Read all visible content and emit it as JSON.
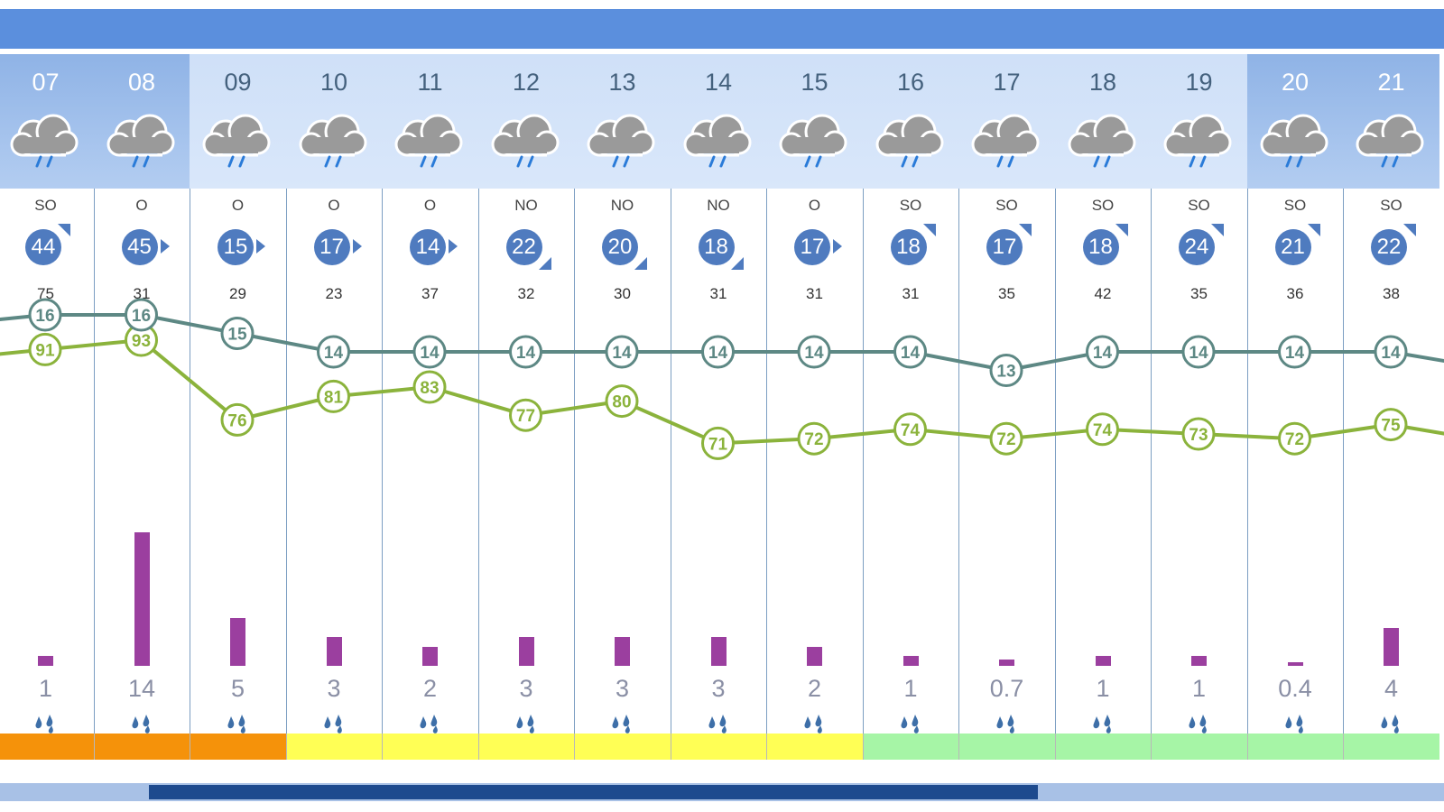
{
  "colors": {
    "max_temp_line": "#5d8884",
    "humidity_line": "#8bb33c",
    "precip_bar": "#9b3f9f",
    "wind_badge": "#4f7bbf"
  },
  "days": [
    {
      "day": "07",
      "icon": "rain-cloud-icon",
      "dir": "SO",
      "wind": "44",
      "arrow": "ne",
      "gust": "75",
      "temp": "16",
      "hum": "91",
      "rain": "1",
      "bar": 1,
      "risk": "#f5920a",
      "weekend": true
    },
    {
      "day": "08",
      "icon": "rain-cloud-icon",
      "dir": "O",
      "wind": "45",
      "arrow": "e",
      "gust": "31",
      "temp": "16",
      "hum": "93",
      "rain": "14",
      "bar": 14,
      "risk": "#f5920a",
      "weekend": true
    },
    {
      "day": "09",
      "icon": "rain-cloud-icon",
      "dir": "O",
      "wind": "15",
      "arrow": "e",
      "gust": "29",
      "temp": "15",
      "hum": "76",
      "rain": "5",
      "bar": 5,
      "risk": "#f5920a",
      "weekend": false
    },
    {
      "day": "10",
      "icon": "rain-cloud-icon",
      "dir": "O",
      "wind": "17",
      "arrow": "e",
      "gust": "23",
      "temp": "14",
      "hum": "81",
      "rain": "3",
      "bar": 3,
      "risk": "#ffff55",
      "weekend": false
    },
    {
      "day": "11",
      "icon": "rain-cloud-icon",
      "dir": "O",
      "wind": "14",
      "arrow": "e",
      "gust": "37",
      "temp": "14",
      "hum": "83",
      "rain": "2",
      "bar": 2,
      "risk": "#ffff55",
      "weekend": false
    },
    {
      "day": "12",
      "icon": "rain-cloud-icon",
      "dir": "NO",
      "wind": "22",
      "arrow": "se",
      "gust": "32",
      "temp": "14",
      "hum": "77",
      "rain": "3",
      "bar": 3,
      "risk": "#ffff55",
      "weekend": false
    },
    {
      "day": "13",
      "icon": "rain-cloud-icon",
      "dir": "NO",
      "wind": "20",
      "arrow": "se",
      "gust": "30",
      "temp": "14",
      "hum": "80",
      "rain": "3",
      "bar": 3,
      "risk": "#ffff55",
      "weekend": false
    },
    {
      "day": "14",
      "icon": "rain-cloud-icon",
      "dir": "NO",
      "wind": "18",
      "arrow": "se",
      "gust": "31",
      "temp": "14",
      "hum": "71",
      "rain": "3",
      "bar": 3,
      "risk": "#ffff55",
      "weekend": false
    },
    {
      "day": "15",
      "icon": "rain-cloud-icon",
      "dir": "O",
      "wind": "17",
      "arrow": "e",
      "gust": "31",
      "temp": "14",
      "hum": "72",
      "rain": "2",
      "bar": 2,
      "risk": "#ffff55",
      "weekend": false
    },
    {
      "day": "16",
      "icon": "rain-cloud-icon",
      "dir": "SO",
      "wind": "18",
      "arrow": "ne",
      "gust": "31",
      "temp": "14",
      "hum": "74",
      "rain": "1",
      "bar": 1,
      "risk": "#a6f5a6",
      "weekend": false
    },
    {
      "day": "17",
      "icon": "rain-cloud-icon",
      "dir": "SO",
      "wind": "17",
      "arrow": "ne",
      "gust": "35",
      "temp": "13",
      "hum": "72",
      "rain": "0.7",
      "bar": 0.7,
      "risk": "#a6f5a6",
      "weekend": false
    },
    {
      "day": "18",
      "icon": "rain-cloud-icon",
      "dir": "SO",
      "wind": "18",
      "arrow": "ne",
      "gust": "42",
      "temp": "14",
      "hum": "74",
      "rain": "1",
      "bar": 1,
      "risk": "#a6f5a6",
      "weekend": false
    },
    {
      "day": "19",
      "icon": "rain-cloud-icon",
      "dir": "SO",
      "wind": "24",
      "arrow": "ne",
      "gust": "35",
      "temp": "14",
      "hum": "73",
      "rain": "1",
      "bar": 1,
      "risk": "#a6f5a6",
      "weekend": false
    },
    {
      "day": "20",
      "icon": "rain-cloud-icon",
      "dir": "SO",
      "wind": "21",
      "arrow": "ne",
      "gust": "36",
      "temp": "14",
      "hum": "72",
      "rain": "0.4",
      "bar": 0.4,
      "risk": "#a6f5a6",
      "weekend": true
    },
    {
      "day": "21",
      "icon": "rain-cloud-icon",
      "dir": "SO",
      "wind": "22",
      "arrow": "ne",
      "gust": "38",
      "temp": "14",
      "hum": "75",
      "rain": "4",
      "bar": 4,
      "risk": "#a6f5a6",
      "weekend": true
    }
  ]
}
